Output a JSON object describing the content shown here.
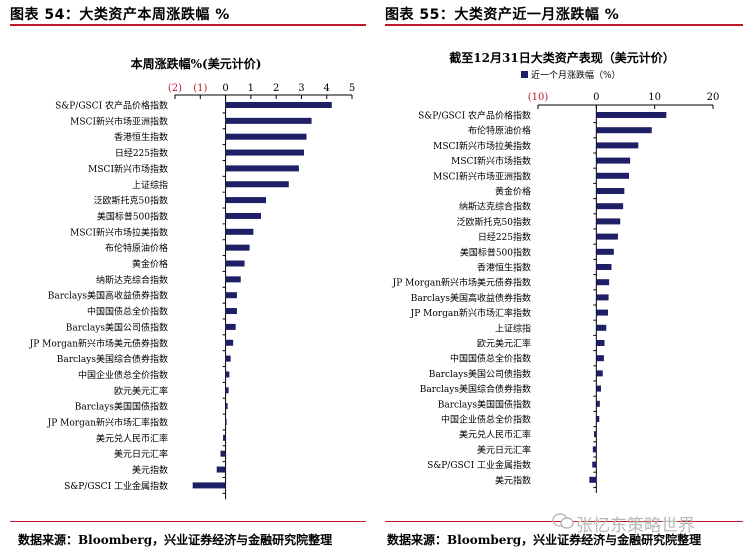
{
  "left_panel": {
    "title": "图表 54：大类资产本周涨跌幅 %",
    "source": "数据来源：Bloomberg，兴业证券经济与金融研究院整理"
  },
  "right_panel": {
    "title": "图表 55：大类资产近一月涨跌幅 %",
    "source": "数据来源：Bloomberg，兴业证券经济与金融研究院整理"
  },
  "watermark": "张忆东策略世界",
  "colors": {
    "bar": "#1f1f66",
    "negative_tick": "#c01a2a",
    "rule": "#c01a2a"
  },
  "chart_data": [
    {
      "type": "bar",
      "orientation": "horizontal",
      "title": "本周涨跌幅%(美元计价)",
      "xlim": [
        -2,
        5
      ],
      "xticks": [
        -2,
        -1,
        0,
        1,
        2,
        3,
        4,
        5
      ],
      "xtick_labels": [
        "(2)",
        "(1)",
        "0",
        "1",
        "2",
        "3",
        "4",
        "5"
      ],
      "categories": [
        "S&P/GSCI 农产品价格指数",
        "MSCI新兴市场亚洲指数",
        "香港恒生指数",
        "日经225指数",
        "MSCI新兴市场指数",
        "上证综指",
        "泛欧斯托克50指数",
        "美国标普500指数",
        "MSCI新兴市场拉美指数",
        "布伦特原油价格",
        "黄金价格",
        "纳斯达克综合指数",
        "Barclays美国高收益债券指数",
        "中国国债总全价指数",
        "Barclays美国公司债指数",
        "JP Morgan新兴市场美元债券指数",
        "Barclays美国综合债券指数",
        "中国企业债总全价指数",
        "欧元美元汇率",
        "Barclays美国国债指数",
        "JP Morgan新兴市场汇率指数",
        "美元兑人民币汇率",
        "美元日元汇率",
        "美元指数",
        "S&P/GSCI 工业金属指数"
      ],
      "values": [
        4.2,
        3.4,
        3.2,
        3.1,
        2.9,
        2.5,
        1.6,
        1.4,
        1.1,
        0.95,
        0.75,
        0.6,
        0.45,
        0.45,
        0.4,
        0.3,
        0.2,
        0.15,
        0.12,
        0.08,
        0.02,
        -0.1,
        -0.2,
        -0.35,
        -1.3
      ],
      "legend": "",
      "grid": false
    },
    {
      "type": "bar",
      "orientation": "horizontal",
      "title": "截至12月31日大类资产表现（美元计价）",
      "xlim": [
        -10,
        20
      ],
      "xticks": [
        -10,
        0,
        10,
        20
      ],
      "xtick_labels": [
        "(10)",
        "0",
        "10",
        "20"
      ],
      "categories": [
        "S&P/GSCI 农产品价格指数",
        "布伦特原油价格",
        "MSCI新兴市场拉美指数",
        "MSCI新兴市场指数",
        "MSCI新兴市场亚洲指数",
        "黄金价格",
        "纳斯达克综合指数",
        "泛欧斯托克50指数",
        "日经225指数",
        "美国标普500指数",
        "香港恒生指数",
        "JP Morgan新兴市场美元债券指数",
        "Barclays美国高收益债券指数",
        "JP Morgan新兴市场汇率指数",
        "上证综指",
        "欧元美元汇率",
        "中国国债总全价指数",
        "Barclays美国公司债指数",
        "Barclays美国综合债券指数",
        "Barclays美国国债指数",
        "中国企业债总全价指数",
        "美元兑人民币汇率",
        "美元日元汇率",
        "S&P/GSCI 工业金属指数",
        "美元指数"
      ],
      "series": [
        {
          "name": "近一个月涨跌幅（%）",
          "values": [
            12.0,
            9.5,
            7.2,
            5.8,
            5.6,
            4.8,
            4.6,
            4.1,
            3.7,
            3.0,
            2.6,
            2.2,
            2.1,
            2.0,
            1.7,
            1.4,
            1.3,
            1.1,
            0.8,
            0.6,
            0.5,
            -0.4,
            -0.6,
            -0.7,
            -1.2
          ]
        }
      ],
      "legend": "top-left",
      "grid": false
    }
  ]
}
